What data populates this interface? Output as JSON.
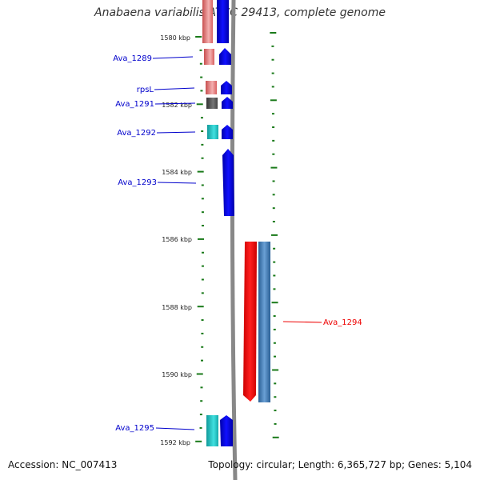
{
  "header": {
    "title": "Anabaena variabilis ATCC 29413, complete genome"
  },
  "footer": {
    "accession": "Accession: NC_007413",
    "topology": "Topology: circular; Length: 6,365,727 bp; Genes: 5,104"
  },
  "scale_labels": [
    "1580 kbp",
    "1582 kbp",
    "1584 kbp",
    "1586 kbp",
    "1588 kbp",
    "1590 kbp",
    "1592 kbp"
  ],
  "gene_labels": [
    {
      "text": "Ava_1289",
      "color": "#0000cc"
    },
    {
      "text": "rpsL",
      "color": "#0000cc"
    },
    {
      "text": "Ava_1291",
      "color": "#0000cc"
    },
    {
      "text": "Ava_1292",
      "color": "#0000cc"
    },
    {
      "text": "Ava_1293",
      "color": "#0000cc"
    },
    {
      "text": "Ava_1294",
      "color": "#ee0000"
    },
    {
      "text": "Ava_1295",
      "color": "#0000cc"
    }
  ],
  "colors": {
    "backbone": "#888888",
    "tick": "#1a7a1a",
    "forward_cds": "#0000ee",
    "rna_pink": "#e06a6a",
    "pseudo_gray": "#555555",
    "cyan": "#1fc5c5",
    "reverse_cds": "#ee0000",
    "steel": "#3a78b5"
  }
}
